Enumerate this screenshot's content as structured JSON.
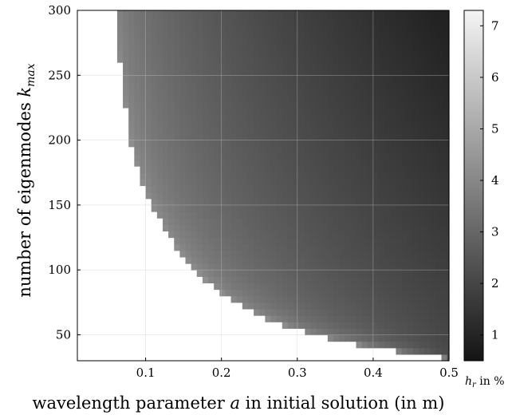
{
  "chart_data": {
    "type": "heatmap",
    "title": "",
    "xlabel": {
      "prefix": "wavelength parameter ",
      "symbol": "a",
      "suffix": " in initial solution (in m)"
    },
    "ylabel": {
      "prefix": "number of eigenmodes ",
      "symbol": "k",
      "subscript": "max"
    },
    "colorbar_label": {
      "symbol": "h",
      "subscript": "r",
      "suffix": " in %"
    },
    "xlim": [
      0.01,
      0.5
    ],
    "ylim": [
      30,
      300
    ],
    "xticks": [
      0.1,
      0.2,
      0.3,
      0.4,
      0.5
    ],
    "xtick_labels": [
      "0.1",
      "0.2",
      "0.3",
      "0.4",
      "0.5"
    ],
    "yticks": [
      50,
      100,
      150,
      200,
      250,
      300
    ],
    "ytick_labels": [
      "50",
      "100",
      "150",
      "200",
      "250",
      "300"
    ],
    "colorbar_range": [
      0.5,
      7.3
    ],
    "colorbar_ticks": [
      1,
      2,
      3,
      4,
      5,
      6,
      7
    ],
    "colorbar_tick_labels": [
      "1",
      "2",
      "3",
      "4",
      "5",
      "6",
      "7"
    ],
    "colormap": "gray",
    "grid": true,
    "undefined_region_color": "#ffffff",
    "boundary_note": "cells to the left/below the boundary are blank (white); the value h_r decreases from ~4.5% at the boundary to ~0.7% at the top-right corner",
    "boundary": {
      "k_max": [
        300,
        275,
        260,
        240,
        220,
        200,
        180,
        160,
        150,
        140,
        130,
        120,
        110,
        100,
        90,
        80,
        70,
        60,
        50,
        40,
        35,
        32
      ],
      "a_min": [
        0.059,
        0.063,
        0.066,
        0.07,
        0.075,
        0.08,
        0.089,
        0.1,
        0.107,
        0.117,
        0.127,
        0.138,
        0.15,
        0.165,
        0.183,
        0.205,
        0.232,
        0.27,
        0.32,
        0.4,
        0.46,
        0.5
      ]
    },
    "value_at_boundary": 4.6,
    "value_at_top_right": 0.7
  }
}
